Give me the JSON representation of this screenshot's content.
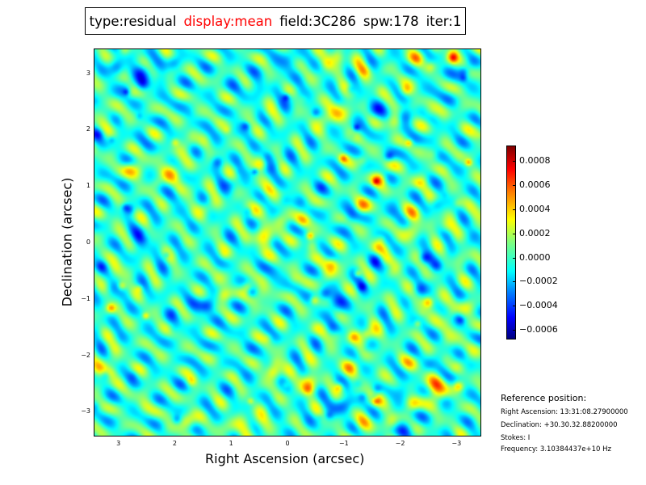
{
  "title": {
    "type": "type:residual",
    "display": "display:mean",
    "field": "field:3C286",
    "spw": "spw:178",
    "iter": "iter:1",
    "highlight_color": "#ff0000"
  },
  "chart_data": {
    "type": "heatmap",
    "xlabel": "Right Ascension (arcsec)",
    "ylabel": "Declination (arcsec)",
    "xlim": [
      3.44,
      -3.44
    ],
    "ylim": [
      -3.44,
      3.44
    ],
    "xticks": [
      "3",
      "2",
      "1",
      "0",
      "−1",
      "−2",
      "−3"
    ],
    "xtick_values": [
      3,
      2,
      1,
      0,
      -1,
      -2,
      -3
    ],
    "yticks": [
      "3",
      "2",
      "1",
      "0",
      "−1",
      "−2",
      "−3"
    ],
    "ytick_values": [
      3,
      2,
      1,
      0,
      -1,
      -2,
      -3
    ],
    "colormap": "jet",
    "colorbar": {
      "range": [
        -0.00068,
        0.00093
      ],
      "tick_values": [
        0.0008,
        0.0006,
        0.0004,
        0.0002,
        0.0,
        -0.0002,
        -0.0004,
        -0.0006
      ],
      "tick_labels": [
        "0.0008",
        "0.0006",
        "0.0004",
        "0.0002",
        "0.0000",
        "−0.0002",
        "−0.0004",
        "−0.0006"
      ]
    }
  },
  "reference": {
    "heading": "Reference position:",
    "ra": "Right Ascension: 13:31:08.27900000",
    "dec": "Declination: +30.30.32.88200000",
    "stokes": "Stokes: I",
    "frequency": "Frequency: 3.10384437e+10 Hz"
  }
}
